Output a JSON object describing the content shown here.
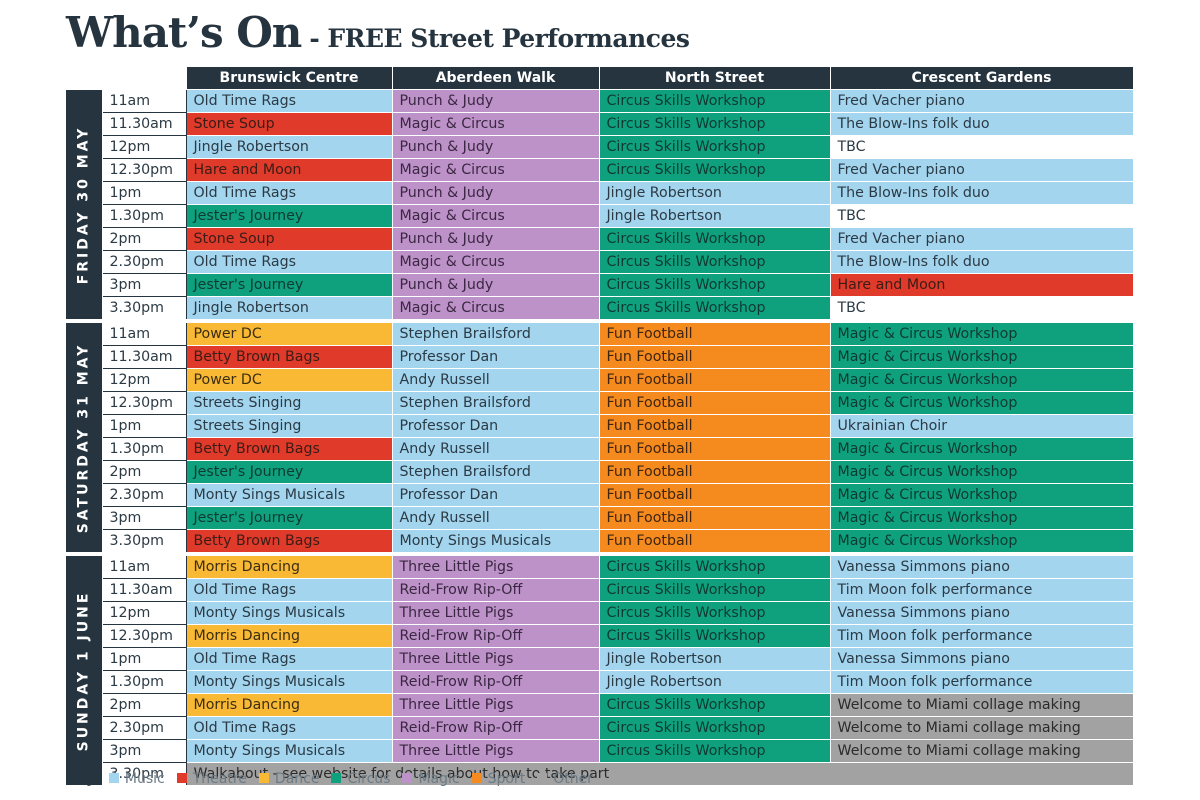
{
  "title": {
    "main": "What’s On",
    "sub": "- FREE Street Performances"
  },
  "venues": [
    "Brunswick Centre",
    "Aberdeen Walk",
    "North Street",
    "Crescent Gardens"
  ],
  "key": {
    "label": "Key",
    "items": [
      {
        "label": "Music",
        "color": "#a3d5ef",
        "cat": "music"
      },
      {
        "label": "Theatre",
        "color": "#e03a2a",
        "cat": "theatre"
      },
      {
        "label": "Dance",
        "color": "#f9b934",
        "cat": "dance"
      },
      {
        "label": "Circus",
        "color": "#0fa17e",
        "cat": "circus"
      },
      {
        "label": "Magic",
        "color": "#bd92c8",
        "cat": "magic"
      },
      {
        "label": "Sport",
        "color": "#f58a1f",
        "cat": "sport"
      },
      {
        "label": "Other",
        "color": "#a2a2a2",
        "cat": "other"
      }
    ]
  },
  "days": [
    {
      "name": "FRIDAY 30 MAY",
      "rows": [
        {
          "time": "11am",
          "cells": [
            [
              "Old Time Rags",
              "music"
            ],
            [
              "Punch & Judy",
              "magic"
            ],
            [
              "Circus Skills Workshop",
              "circus"
            ],
            [
              "Fred Vacher piano",
              "music"
            ]
          ]
        },
        {
          "time": "11.30am",
          "cells": [
            [
              "Stone Soup",
              "theatre"
            ],
            [
              "Magic & Circus",
              "magic"
            ],
            [
              "Circus Skills Workshop",
              "circus"
            ],
            [
              "The Blow-Ins folk duo",
              "music"
            ]
          ]
        },
        {
          "time": "12pm",
          "cells": [
            [
              "Jingle Robertson",
              "music"
            ],
            [
              "Punch & Judy",
              "magic"
            ],
            [
              "Circus Skills Workshop",
              "circus"
            ],
            [
              "TBC",
              "none"
            ]
          ]
        },
        {
          "time": "12.30pm",
          "cells": [
            [
              "Hare and Moon",
              "theatre"
            ],
            [
              "Magic & Circus",
              "magic"
            ],
            [
              "Circus Skills Workshop",
              "circus"
            ],
            [
              "Fred Vacher piano",
              "music"
            ]
          ]
        },
        {
          "time": "1pm",
          "cells": [
            [
              "Old Time Rags",
              "music"
            ],
            [
              "Punch & Judy",
              "magic"
            ],
            [
              "Jingle Robertson",
              "music"
            ],
            [
              "The Blow-Ins folk duo",
              "music"
            ]
          ]
        },
        {
          "time": "1.30pm",
          "cells": [
            [
              "Jester's Journey",
              "circus"
            ],
            [
              "Magic & Circus",
              "magic"
            ],
            [
              "Jingle Robertson",
              "music"
            ],
            [
              "TBC",
              "none"
            ]
          ]
        },
        {
          "time": "2pm",
          "cells": [
            [
              "Stone Soup",
              "theatre"
            ],
            [
              "Punch & Judy",
              "magic"
            ],
            [
              "Circus Skills Workshop",
              "circus"
            ],
            [
              "Fred Vacher piano",
              "music"
            ]
          ]
        },
        {
          "time": "2.30pm",
          "cells": [
            [
              "Old Time Rags",
              "music"
            ],
            [
              "Magic & Circus",
              "magic"
            ],
            [
              "Circus Skills Workshop",
              "circus"
            ],
            [
              "The Blow-Ins folk duo",
              "music"
            ]
          ]
        },
        {
          "time": "3pm",
          "cells": [
            [
              "Jester's Journey",
              "circus"
            ],
            [
              "Punch & Judy",
              "magic"
            ],
            [
              "Circus Skills Workshop",
              "circus"
            ],
            [
              "Hare and Moon",
              "theatre"
            ]
          ]
        },
        {
          "time": "3.30pm",
          "cells": [
            [
              "Jingle Robertson",
              "music"
            ],
            [
              "Magic & Circus",
              "magic"
            ],
            [
              "Circus Skills Workshop",
              "circus"
            ],
            [
              "TBC",
              "none"
            ]
          ]
        }
      ]
    },
    {
      "name": "SATURDAY 31 MAY",
      "rows": [
        {
          "time": "11am",
          "cells": [
            [
              "Power DC",
              "dance"
            ],
            [
              "Stephen Brailsford",
              "music"
            ],
            [
              "Fun Football",
              "sport"
            ],
            [
              "Magic & Circus Workshop",
              "circus"
            ]
          ]
        },
        {
          "time": "11.30am",
          "cells": [
            [
              "Betty Brown Bags",
              "theatre"
            ],
            [
              "Professor Dan",
              "music"
            ],
            [
              "Fun Football",
              "sport"
            ],
            [
              "Magic & Circus Workshop",
              "circus"
            ]
          ]
        },
        {
          "time": "12pm",
          "cells": [
            [
              "Power DC",
              "dance"
            ],
            [
              "Andy Russell",
              "music"
            ],
            [
              "Fun Football",
              "sport"
            ],
            [
              "Magic & Circus Workshop",
              "circus"
            ]
          ]
        },
        {
          "time": "12.30pm",
          "cells": [
            [
              "Streets Singing",
              "music"
            ],
            [
              "Stephen Brailsford",
              "music"
            ],
            [
              "Fun Football",
              "sport"
            ],
            [
              "Magic & Circus Workshop",
              "circus"
            ]
          ]
        },
        {
          "time": "1pm",
          "cells": [
            [
              "Streets Singing",
              "music"
            ],
            [
              "Professor Dan",
              "music"
            ],
            [
              "Fun Football",
              "sport"
            ],
            [
              "Ukrainian Choir",
              "music"
            ]
          ]
        },
        {
          "time": "1.30pm",
          "cells": [
            [
              "Betty Brown Bags",
              "theatre"
            ],
            [
              "Andy Russell",
              "music"
            ],
            [
              "Fun Football",
              "sport"
            ],
            [
              "Magic & Circus Workshop",
              "circus"
            ]
          ]
        },
        {
          "time": "2pm",
          "cells": [
            [
              "Jester's Journey",
              "circus"
            ],
            [
              "Stephen Brailsford",
              "music"
            ],
            [
              "Fun Football",
              "sport"
            ],
            [
              "Magic & Circus Workshop",
              "circus"
            ]
          ]
        },
        {
          "time": "2.30pm",
          "cells": [
            [
              "Monty Sings Musicals",
              "music"
            ],
            [
              "Professor Dan",
              "music"
            ],
            [
              "Fun Football",
              "sport"
            ],
            [
              "Magic & Circus Workshop",
              "circus"
            ]
          ]
        },
        {
          "time": "3pm",
          "cells": [
            [
              "Jester's Journey",
              "circus"
            ],
            [
              "Andy Russell",
              "music"
            ],
            [
              "Fun Football",
              "sport"
            ],
            [
              "Magic & Circus Workshop",
              "circus"
            ]
          ]
        },
        {
          "time": "3.30pm",
          "cells": [
            [
              "Betty Brown Bags",
              "theatre"
            ],
            [
              "Monty Sings Musicals",
              "music"
            ],
            [
              "Fun Football",
              "sport"
            ],
            [
              "Magic & Circus Workshop",
              "circus"
            ]
          ]
        }
      ]
    },
    {
      "name": "SUNDAY 1 JUNE",
      "rows": [
        {
          "time": "11am",
          "cells": [
            [
              "Morris Dancing",
              "dance"
            ],
            [
              "Three Little Pigs",
              "magic"
            ],
            [
              "Circus Skills Workshop",
              "circus"
            ],
            [
              "Vanessa Simmons piano",
              "music"
            ]
          ]
        },
        {
          "time": "11.30am",
          "cells": [
            [
              "Old Time Rags",
              "music"
            ],
            [
              "Reid-Frow Rip-Off",
              "magic"
            ],
            [
              "Circus Skills Workshop",
              "circus"
            ],
            [
              "Tim Moon folk performance",
              "music"
            ]
          ]
        },
        {
          "time": "12pm",
          "cells": [
            [
              "Monty Sings Musicals",
              "music"
            ],
            [
              "Three Little Pigs",
              "magic"
            ],
            [
              "Circus Skills Workshop",
              "circus"
            ],
            [
              "Vanessa Simmons piano",
              "music"
            ]
          ]
        },
        {
          "time": "12.30pm",
          "cells": [
            [
              "Morris Dancing",
              "dance"
            ],
            [
              "Reid-Frow Rip-Off",
              "magic"
            ],
            [
              "Circus Skills Workshop",
              "circus"
            ],
            [
              "Tim Moon folk performance",
              "music"
            ]
          ]
        },
        {
          "time": "1pm",
          "cells": [
            [
              "Old Time Rags",
              "music"
            ],
            [
              "Three Little Pigs",
              "magic"
            ],
            [
              "Jingle Robertson",
              "music"
            ],
            [
              "Vanessa Simmons piano",
              "music"
            ]
          ]
        },
        {
          "time": "1.30pm",
          "cells": [
            [
              "Monty Sings Musicals",
              "music"
            ],
            [
              "Reid-Frow Rip-Off",
              "magic"
            ],
            [
              "Jingle Robertson",
              "music"
            ],
            [
              "Tim Moon folk performance",
              "music"
            ]
          ]
        },
        {
          "time": "2pm",
          "cells": [
            [
              "Morris Dancing",
              "dance"
            ],
            [
              "Three Little Pigs",
              "magic"
            ],
            [
              "Circus Skills Workshop",
              "circus"
            ],
            [
              "Welcome to Miami collage making",
              "other"
            ]
          ]
        },
        {
          "time": "2.30pm",
          "cells": [
            [
              "Old Time Rags",
              "music"
            ],
            [
              "Reid-Frow Rip-Off",
              "magic"
            ],
            [
              "Circus Skills Workshop",
              "circus"
            ],
            [
              "Welcome to Miami collage making",
              "other"
            ]
          ]
        },
        {
          "time": "3pm",
          "cells": [
            [
              "Monty Sings Musicals",
              "music"
            ],
            [
              "Three Little Pigs",
              "magic"
            ],
            [
              "Circus Skills Workshop",
              "circus"
            ],
            [
              "Welcome to Miami collage making",
              "other"
            ]
          ]
        },
        {
          "time": "3.30pm",
          "span": true,
          "cells": [
            [
              "Walkabout - see website for details about how to take part",
              "other"
            ]
          ]
        }
      ]
    }
  ]
}
